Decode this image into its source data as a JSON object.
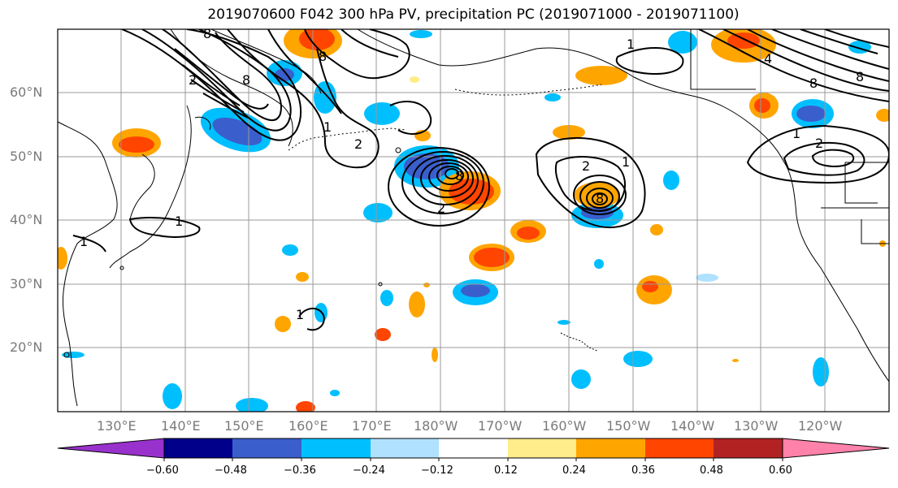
{
  "title": "2019070600 F042 300 hPa PV, precipitation PC (2019071000 - 2019071100)",
  "lat_labels": [
    "60°N",
    "50°N",
    "40°N",
    "30°N",
    "20°N"
  ],
  "lon_labels": [
    "130°E",
    "140°E",
    "150°E",
    "160°E",
    "170°E",
    "180°W",
    "170°W",
    "160°W",
    "150°W",
    "140°W",
    "130°W",
    "120°W"
  ],
  "colorbar": {
    "ticks": [
      "−0.60",
      "−0.48",
      "−0.36",
      "−0.24",
      "−0.12",
      "0.12",
      "0.24",
      "0.36",
      "0.48",
      "0.60"
    ],
    "colors": [
      "#9932cc",
      "#00008b",
      "#3a5fcd",
      "#00bfff",
      "#b0e2ff",
      "#ffffff",
      "#ffec8b",
      "#ffa500",
      "#ff4500",
      "#b22222",
      "#ff82ab"
    ]
  },
  "contour_labels": [
    "1",
    "2",
    "4",
    "6",
    "8"
  ]
}
